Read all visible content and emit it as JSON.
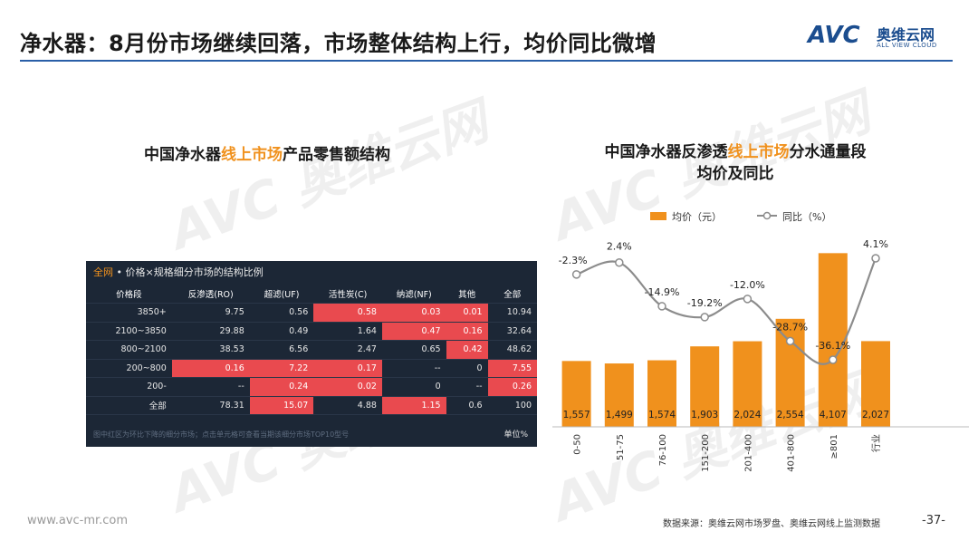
{
  "header": {
    "title": "净水器：8月份市场继续回落，市场整体结构上行，均价同比微增",
    "logo_mark": "AVC",
    "logo_cn": "奥维云网",
    "logo_en": "ALL VIEW CLOUD"
  },
  "watermark_text": "AVC 奥维云网",
  "left_section": {
    "title_pre": "中国净水器",
    "title_hl": "线上市场",
    "title_post": "产品零售额结构"
  },
  "table": {
    "header_hl": "全网",
    "header_rest": " • 价格×规格细分市场的结构比例",
    "columns": [
      "价格段",
      "反渗透(RO)",
      "超滤(UF)",
      "活性炭(C)",
      "纳滤(NF)",
      "其他",
      "全部"
    ],
    "rows": [
      {
        "cells": [
          "3850+",
          "9.75",
          "0.56",
          "0.58",
          "0.03",
          "0.01",
          "10.94"
        ],
        "red": [
          3,
          4,
          5
        ]
      },
      {
        "cells": [
          "2100~3850",
          "29.88",
          "0.49",
          "1.64",
          "0.47",
          "0.16",
          "32.64"
        ],
        "red": [
          4,
          5
        ]
      },
      {
        "cells": [
          "800~2100",
          "38.53",
          "6.56",
          "2.47",
          "0.65",
          "0.42",
          "48.62"
        ],
        "red": [
          5
        ]
      },
      {
        "cells": [
          "200~800",
          "0.16",
          "7.22",
          "0.17",
          "--",
          "0",
          "7.55"
        ],
        "red": [
          1,
          2,
          3,
          6
        ]
      },
      {
        "cells": [
          "200-",
          "--",
          "0.24",
          "0.02",
          "0",
          "--",
          "0.26"
        ],
        "red": [
          2,
          3,
          6
        ]
      },
      {
        "cells": [
          "全部",
          "78.31",
          "15.07",
          "4.88",
          "1.15",
          "0.6",
          "100"
        ],
        "red": [
          2,
          4
        ]
      }
    ],
    "footnote": "图中红区为环比下降的细分市场；点击单元格可查看当期该细分市场TOP10型号",
    "unit": "单位%"
  },
  "right_section": {
    "title_l1_pre": "中国净水器反渗透",
    "title_l1_hl": "线上市场",
    "title_l1_post": "分水通量段",
    "title_l2": "均价及同比"
  },
  "chart_data": {
    "type": "bar",
    "categories": [
      "0-50",
      "51-75",
      "76-100",
      "151-200",
      "201-400",
      "401-800",
      "≥801",
      "行业"
    ],
    "series": [
      {
        "name": "均价（元）",
        "type": "bar",
        "values": [
          1557,
          1499,
          1574,
          1903,
          2024,
          2554,
          4107,
          2027
        ],
        "color": "#f0911d"
      },
      {
        "name": "同比（%）",
        "type": "line",
        "values": [
          -2.3,
          2.4,
          -14.9,
          -19.2,
          -12.0,
          -28.7,
          -36.1,
          4.1
        ],
        "labels": [
          "-2.3%",
          "2.4%",
          "-14.9%",
          "-19.2%",
          "-12.0%",
          "-28.7%",
          "-36.1%",
          "4.1%"
        ],
        "color": "#8c8c8c"
      }
    ],
    "bar_labels": [
      "1,557",
      "1,499",
      "1,574",
      "1,903",
      "2,024",
      "2,554",
      "4,107",
      "2,027"
    ],
    "legend_position": "top"
  },
  "footer": {
    "url": "www.avc-mr.com",
    "source": "数据来源：奥维云网市场罗盘、奥维云网线上监测数据",
    "page": "-37-"
  }
}
